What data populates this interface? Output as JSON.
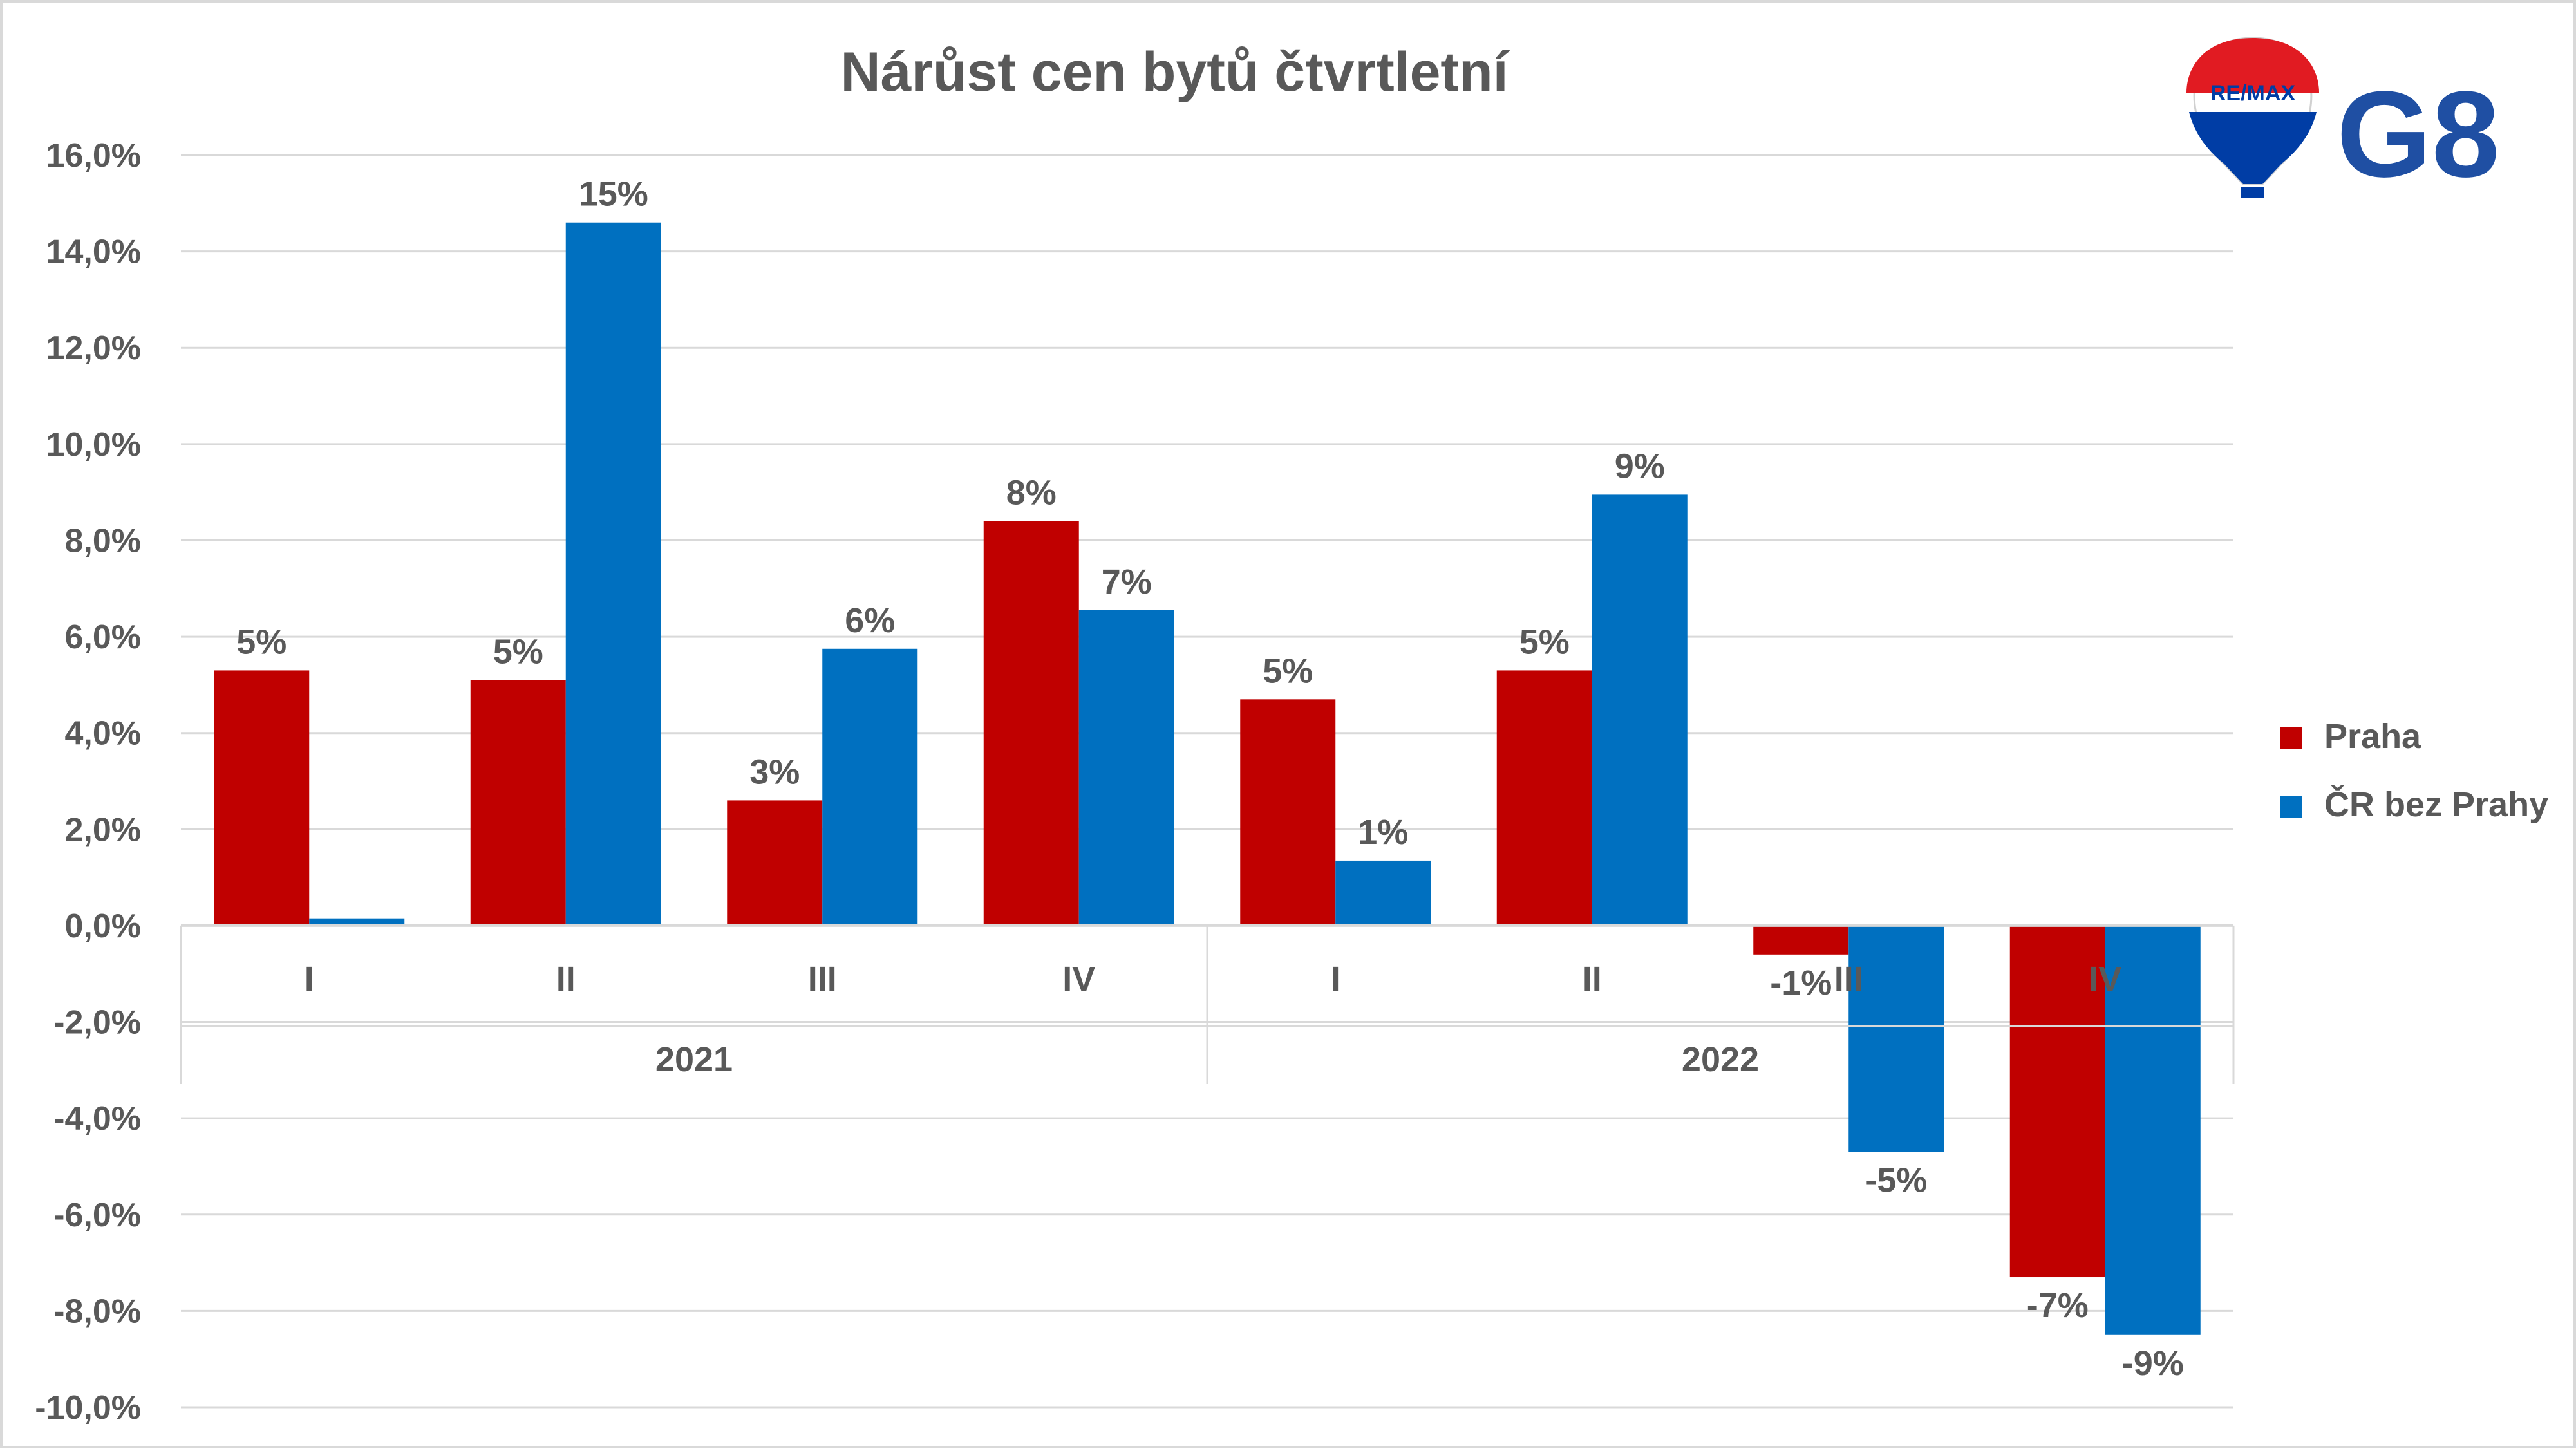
{
  "chart_data": {
    "type": "bar",
    "title": "Nárůst cen bytů čtvrtletní",
    "y_axis": {
      "min": -10,
      "max": 16,
      "step": 2,
      "tick_labels": [
        "-10,0%",
        "-8,0%",
        "-6,0%",
        "-4,0%",
        "-2,0%",
        "0,0%",
        "2,0%",
        "4,0%",
        "6,0%",
        "8,0%",
        "10,0%",
        "12,0%",
        "14,0%",
        "16,0%"
      ]
    },
    "grid": true,
    "categories": [
      "I",
      "II",
      "III",
      "IV",
      "I",
      "II",
      "III",
      "IV"
    ],
    "groups": [
      {
        "label": "2021",
        "span": 4
      },
      {
        "label": "2022",
        "span": 4
      }
    ],
    "series": [
      {
        "name": "Praha",
        "color": "#c00000",
        "values": [
          5.3,
          5.1,
          2.6,
          8.4,
          4.7,
          5.3,
          -0.6,
          -7.3
        ],
        "labels": [
          "5%",
          "5%",
          "3%",
          "8%",
          "5%",
          "5%",
          "-1%",
          "-7%"
        ]
      },
      {
        "name": "ČR bez Prahy",
        "color": "#0070c0",
        "values": [
          0.15,
          14.6,
          5.75,
          6.55,
          1.35,
          8.95,
          -4.7,
          -8.5
        ],
        "labels": [
          "",
          "15%",
          "6%",
          "7%",
          "1%",
          "9%",
          "-5%",
          "-9%"
        ]
      }
    ],
    "legend": {
      "position": "right"
    }
  },
  "logo": {
    "brand": "RE/MAX",
    "name": "G8",
    "balloon_colors": [
      "#e11b22",
      "#ffffff",
      "#003da5"
    ],
    "g8_color": "#1f4fa3"
  }
}
